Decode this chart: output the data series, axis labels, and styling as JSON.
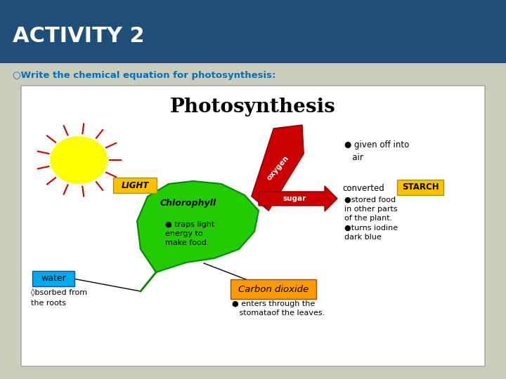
{
  "title": "ACTIVITY 2",
  "title_bg": "#1f4e79",
  "title_fg": "#ffffff",
  "slide_bg": "#ccccbb",
  "subtitle": "○Write the chemical equation for photosynthesis:",
  "subtitle_color": "#0070c0",
  "diagram_bg": "#ffffff",
  "diagram_border": "#aaaaaa",
  "photosynthesis_title": "Photosynthesis",
  "sun_color": "#ffff00",
  "ray_color": "#cc0000",
  "leaf_color": "#22cc00",
  "leaf_edge": "#008800",
  "light_box_color": "#ffc000",
  "light_box_text": "LIGHT",
  "water_box_color": "#00aaee",
  "water_box_text": "water",
  "co2_box_color": "#ff9900",
  "co2_box_text": "Carbon dioxide",
  "starch_box_color": "#ffc000",
  "starch_box_text": "STARCH",
  "arrow_color": "#cc0000",
  "arrow_edge": "#880000",
  "oxygen_label": "oxygen",
  "sugar_label": "sugar",
  "chlorophyll_text": "Chlorophyll",
  "chlorophyll_sub": "● traps light\nenergy to\nmake food.",
  "text_given_off": "● given off into\n   air",
  "text_converted": "converted",
  "text_starch_desc": "●stored food\nin other parts\nof the plant.\n●turns iodine\ndark blue",
  "text_water_desc": "◊bsorbed from\nthe roots",
  "text_co2_desc": "● enters through the\n   stomataof the leaves."
}
